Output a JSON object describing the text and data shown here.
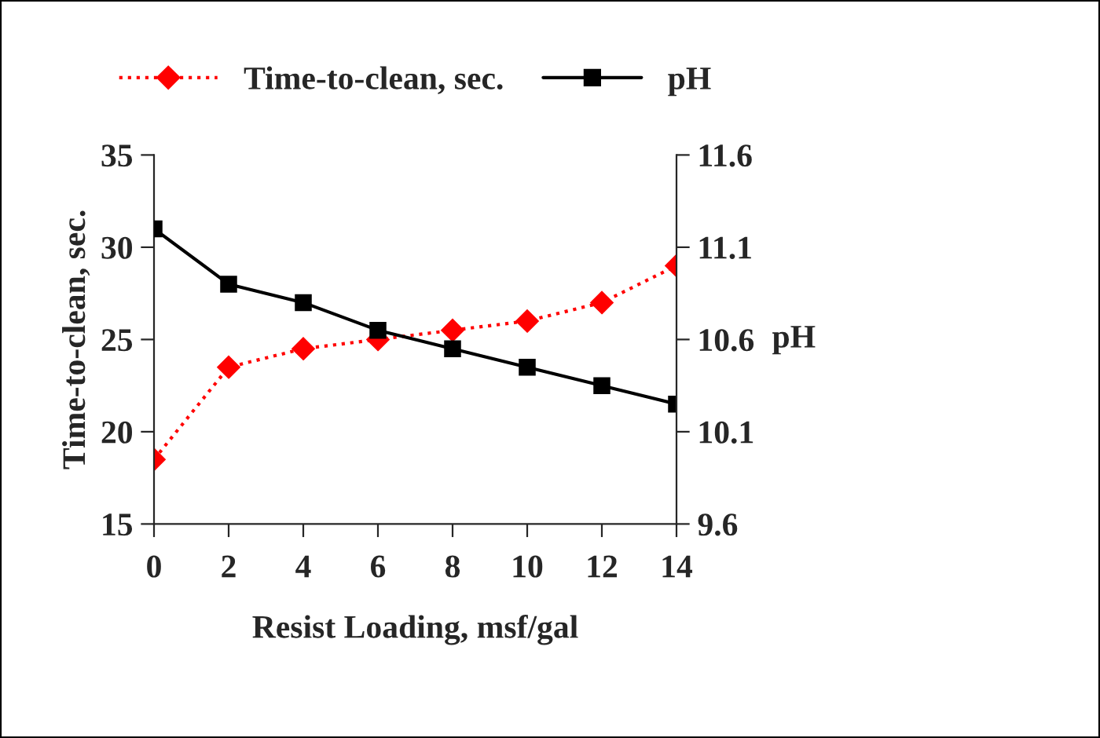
{
  "chart_data": {
    "type": "line",
    "xlabel": "Resist Loading, msf/gal",
    "ylabel": "Time-to-clean, sec.",
    "y2label": "pH",
    "x": [
      0,
      2,
      4,
      6,
      8,
      10,
      12,
      14
    ],
    "series": [
      {
        "name": "Time-to-clean, sec.",
        "color": "#ff0000",
        "marker": "diamond",
        "line_style": "dotted",
        "values": [
          18.5,
          23.5,
          24.5,
          25.0,
          25.5,
          26.0,
          27.0,
          29.0
        ]
      },
      {
        "name": "pH",
        "color": "#000000",
        "marker": "square",
        "line_style": "solid",
        "axis": "y2",
        "values": [
          11.2,
          10.9,
          10.8,
          10.65,
          10.55,
          10.45,
          10.35,
          10.25
        ]
      }
    ],
    "xlim": [
      0,
      14
    ],
    "xticks": [
      0,
      2,
      4,
      6,
      8,
      10,
      12,
      14
    ],
    "ylim": [
      15,
      35
    ],
    "yticks": [
      15,
      20,
      25,
      30,
      35
    ],
    "y2lim": [
      9.6,
      11.6
    ],
    "y2ticks": [
      9.6,
      10.1,
      10.6,
      11.1,
      11.6
    ],
    "grid": false,
    "legend": "top"
  }
}
